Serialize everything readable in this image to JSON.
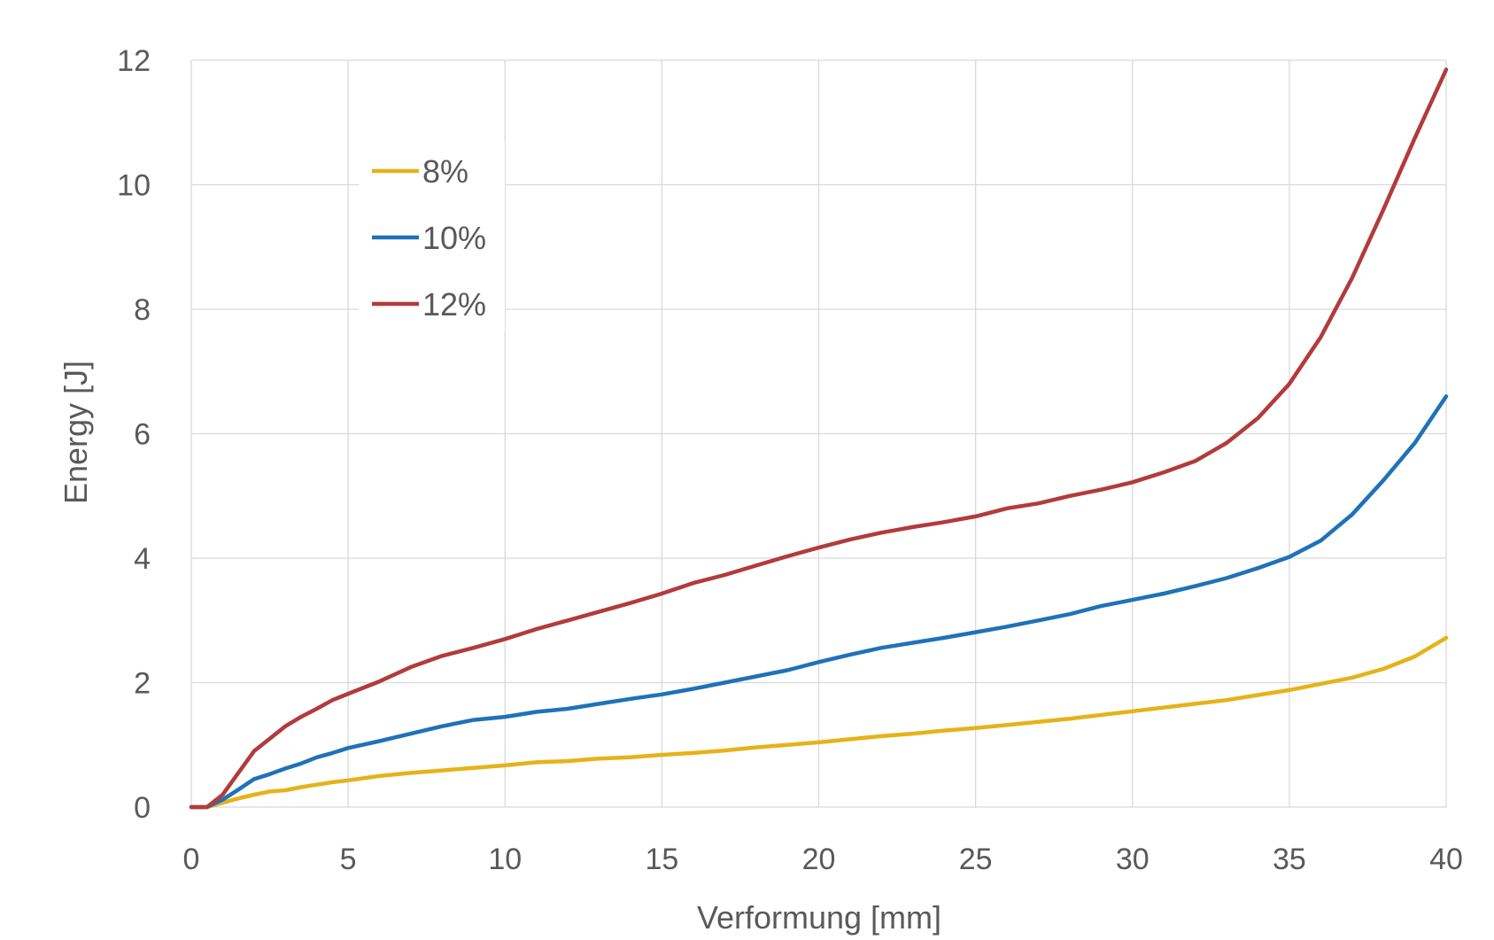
{
  "chart_data": {
    "type": "line",
    "title": "",
    "xlabel": "Verformung [mm]",
    "ylabel": "Energy [J]",
    "xlim": [
      0,
      40
    ],
    "ylim": [
      0,
      12
    ],
    "xticks": [
      0,
      5,
      10,
      15,
      20,
      25,
      30,
      35,
      40
    ],
    "yticks": [
      0,
      2,
      4,
      6,
      8,
      10,
      12
    ],
    "grid": true,
    "legend_position": "top-left",
    "series": [
      {
        "name": "8%",
        "color": "#E6B219",
        "x": [
          0,
          0.5,
          1,
          1.5,
          2,
          2.5,
          3,
          3.5,
          4,
          4.5,
          5,
          6,
          7,
          8,
          9,
          10,
          11,
          12,
          13,
          14,
          15,
          16,
          17,
          18,
          19,
          20,
          21,
          22,
          23,
          24,
          25,
          26,
          27,
          28,
          29,
          30,
          31,
          32,
          33,
          34,
          35,
          36,
          37,
          38,
          39,
          40
        ],
        "y": [
          0,
          0,
          0.07,
          0.14,
          0.2,
          0.25,
          0.27,
          0.32,
          0.36,
          0.4,
          0.43,
          0.5,
          0.55,
          0.59,
          0.63,
          0.67,
          0.72,
          0.74,
          0.78,
          0.8,
          0.84,
          0.87,
          0.91,
          0.96,
          1.0,
          1.04,
          1.09,
          1.14,
          1.18,
          1.23,
          1.27,
          1.32,
          1.37,
          1.42,
          1.48,
          1.54,
          1.6,
          1.66,
          1.72,
          1.8,
          1.88,
          1.98,
          2.08,
          2.22,
          2.42,
          2.72
        ]
      },
      {
        "name": "10%",
        "color": "#1F72B8",
        "x": [
          0,
          0.5,
          1,
          1.5,
          2,
          2.5,
          3,
          3.5,
          4,
          4.5,
          5,
          6,
          7,
          8,
          9,
          10,
          11,
          12,
          13,
          14,
          15,
          16,
          17,
          18,
          19,
          20,
          21,
          22,
          23,
          24,
          25,
          26,
          27,
          28,
          29,
          30,
          31,
          32,
          33,
          34,
          35,
          36,
          37,
          38,
          39,
          40
        ],
        "y": [
          0,
          0,
          0.12,
          0.28,
          0.45,
          0.53,
          0.62,
          0.7,
          0.8,
          0.87,
          0.95,
          1.06,
          1.18,
          1.3,
          1.4,
          1.45,
          1.53,
          1.58,
          1.66,
          1.74,
          1.81,
          1.9,
          2.0,
          2.1,
          2.2,
          2.33,
          2.45,
          2.56,
          2.64,
          2.72,
          2.81,
          2.9,
          3.0,
          3.1,
          3.23,
          3.33,
          3.43,
          3.55,
          3.68,
          3.84,
          4.02,
          4.28,
          4.7,
          5.25,
          5.85,
          6.6
        ]
      },
      {
        "name": "12%",
        "color": "#B23B3B",
        "x": [
          0,
          0.5,
          1,
          1.5,
          2,
          2.5,
          3,
          3.5,
          4,
          4.5,
          5,
          6,
          7,
          8,
          9,
          10,
          11,
          12,
          13,
          14,
          15,
          16,
          17,
          18,
          19,
          20,
          21,
          22,
          23,
          24,
          25,
          26,
          27,
          28,
          29,
          30,
          31,
          32,
          33,
          34,
          35,
          36,
          37,
          38,
          39,
          40
        ],
        "y": [
          0,
          0,
          0.2,
          0.55,
          0.9,
          1.1,
          1.3,
          1.45,
          1.58,
          1.72,
          1.82,
          2.02,
          2.25,
          2.43,
          2.56,
          2.7,
          2.86,
          3.0,
          3.14,
          3.28,
          3.43,
          3.6,
          3.73,
          3.88,
          4.03,
          4.17,
          4.3,
          4.41,
          4.5,
          4.58,
          4.67,
          4.8,
          4.88,
          5.0,
          5.1,
          5.22,
          5.38,
          5.56,
          5.85,
          6.25,
          6.8,
          7.55,
          8.5,
          9.6,
          10.75,
          11.85
        ]
      }
    ]
  }
}
